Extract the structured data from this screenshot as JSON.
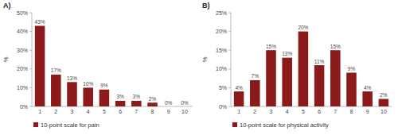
{
  "chart_data": [
    {
      "type": "bar",
      "title": "A)",
      "ylabel": "%",
      "categories": [
        "1",
        "2",
        "3",
        "4",
        "5",
        "6",
        "7",
        "8",
        "9",
        "10"
      ],
      "series": [
        {
          "name": "10-point scale for pain",
          "color": "#8b1a1a",
          "values": [
            43,
            17,
            13,
            10,
            9,
            3,
            3,
            2,
            0,
            0
          ],
          "value_labels": [
            "43%",
            "17%",
            "13%",
            "10%",
            "9%",
            "3%",
            "3%",
            "2%",
            "0%",
            "0%"
          ]
        }
      ],
      "ylim": [
        0,
        50
      ],
      "yticks": [
        {
          "value": 0,
          "label": "0%"
        },
        {
          "value": 10,
          "label": "10%"
        },
        {
          "value": 20,
          "label": "20%"
        },
        {
          "value": 30,
          "label": "30%"
        },
        {
          "value": 40,
          "label": "40%"
        },
        {
          "value": 50,
          "label": "50%"
        }
      ],
      "grid": false,
      "legend": "bottom",
      "data_labels": true
    },
    {
      "type": "bar",
      "title": "B)",
      "ylabel": "%",
      "categories": [
        "1",
        "2",
        "3",
        "4",
        "5",
        "6",
        "7",
        "8",
        "9",
        "10"
      ],
      "series": [
        {
          "name": "10-point scale for physical activity",
          "color": "#8b1a1a",
          "values": [
            4,
            7,
            15,
            13,
            20,
            11,
            15,
            9,
            4,
            2
          ],
          "value_labels": [
            "4%",
            "7%",
            "15%",
            "13%",
            "20%",
            "11%",
            "15%",
            "9%",
            "4%",
            "2%"
          ]
        }
      ],
      "ylim": [
        0,
        25
      ],
      "yticks": [
        {
          "value": 0,
          "label": "0%"
        },
        {
          "value": 5,
          "label": "5%"
        },
        {
          "value": 10,
          "label": "10%"
        },
        {
          "value": 15,
          "label": "15%"
        },
        {
          "value": 20,
          "label": "20%"
        },
        {
          "value": 25,
          "label": "25%"
        }
      ],
      "grid": false,
      "legend": "bottom",
      "data_labels": true
    }
  ]
}
